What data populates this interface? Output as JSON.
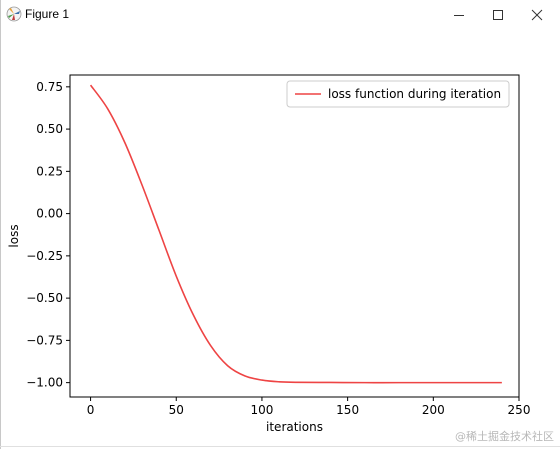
{
  "window": {
    "title": "Figure 1",
    "controls": [
      "minimize",
      "maximize",
      "close"
    ]
  },
  "watermark": "@稀土掘金技术社区",
  "chart_data": {
    "type": "line",
    "title": "",
    "xlabel": "iterations",
    "ylabel": "loss",
    "xlim": [
      -12,
      250
    ],
    "ylim": [
      -1.085,
      0.82
    ],
    "xticks": [
      0,
      50,
      100,
      150,
      200,
      250
    ],
    "xtick_labels": [
      "0",
      "50",
      "100",
      "150",
      "200",
      "250"
    ],
    "yticks": [
      0.75,
      0.5,
      0.25,
      0.0,
      -0.25,
      -0.5,
      -0.75,
      -1.0
    ],
    "ytick_labels": [
      "0.75",
      "0.50",
      "0.25",
      "0.00",
      "−0.25",
      "−0.50",
      "−0.75",
      "−1.00"
    ],
    "grid": false,
    "legend_position": "top-right",
    "series": [
      {
        "name": "loss function during iteration",
        "color": "#ee4444",
        "x": [
          0,
          10,
          20,
          30,
          40,
          50,
          60,
          70,
          80,
          90,
          100,
          110,
          120,
          140,
          160,
          180,
          200,
          220,
          240
        ],
        "y": [
          0.76,
          0.62,
          0.42,
          0.17,
          -0.1,
          -0.37,
          -0.6,
          -0.78,
          -0.9,
          -0.96,
          -0.985,
          -0.995,
          -0.998,
          -0.999,
          -1.0,
          -1.0,
          -1.0,
          -1.0,
          -1.0
        ]
      }
    ]
  }
}
